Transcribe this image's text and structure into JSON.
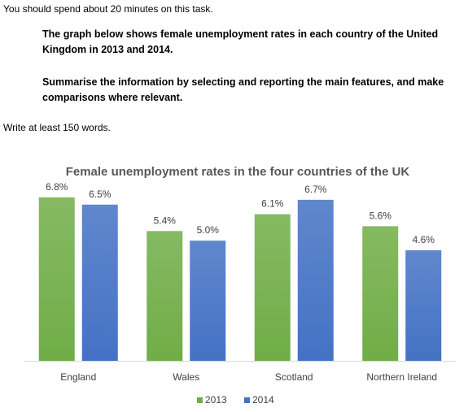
{
  "task": {
    "intro": "You should spend about 20 minutes on this task.",
    "prompt_1": "The graph below shows female unemployment rates in each country of the United Kingdom in 2013 and 2014.",
    "prompt_2": "Summarise the information by selecting and reporting the main features, and make comparisons where relevant.",
    "word_count": "Write at least 150 words."
  },
  "chart_data": {
    "type": "bar",
    "title": "Female unemployment rates in the four countries of the UK",
    "categories": [
      "England",
      "Wales",
      "Scotland",
      "Northern Ireland"
    ],
    "series": [
      {
        "name": "2013",
        "values": [
          6.8,
          5.4,
          6.1,
          5.6
        ],
        "labels": [
          "6.8%",
          "5.4%",
          "6.1%",
          "5.6%"
        ],
        "color": "#70ad47"
      },
      {
        "name": "2014",
        "values": [
          6.5,
          5.0,
          6.7,
          4.6
        ],
        "labels": [
          "6.5%",
          "5.0%",
          "6.7%",
          "4.6%"
        ],
        "color": "#4472c4"
      }
    ],
    "xlabel": "",
    "ylabel": "",
    "ylim": [
      0,
      7
    ],
    "grid": false,
    "legend": "bottom-center"
  }
}
